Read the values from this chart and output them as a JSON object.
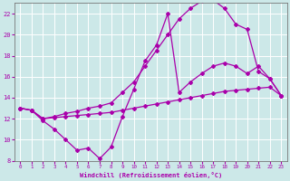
{
  "xlabel": "Windchill (Refroidissement éolien,°C)",
  "xlim": [
    -0.5,
    23.5
  ],
  "ylim": [
    8,
    23
  ],
  "yticks": [
    8,
    10,
    12,
    14,
    16,
    18,
    20,
    22
  ],
  "xticks": [
    0,
    1,
    2,
    3,
    4,
    5,
    6,
    7,
    8,
    9,
    10,
    11,
    12,
    13,
    14,
    15,
    16,
    17,
    18,
    19,
    20,
    21,
    22,
    23
  ],
  "line_color": "#aa00aa",
  "bg_color": "#cce8e8",
  "grid_color": "#ffffff",
  "curve_upper_x": [
    0,
    1,
    2,
    3,
    4,
    5,
    6,
    7,
    8,
    9,
    10,
    11,
    12,
    13,
    14,
    15,
    16,
    17,
    18,
    19,
    20,
    21,
    22,
    23
  ],
  "curve_upper_y": [
    13.0,
    12.8,
    12.0,
    12.2,
    12.5,
    12.7,
    13.0,
    13.2,
    13.5,
    14.5,
    15.5,
    17.0,
    18.5,
    20.0,
    21.5,
    22.5,
    23.2,
    23.3,
    22.5,
    21.0,
    20.5,
    16.5,
    15.8,
    14.2
  ],
  "curve_mid_x": [
    0,
    1,
    2,
    3,
    4,
    5,
    6,
    7,
    8,
    9,
    10,
    11,
    12,
    13,
    14,
    15,
    16,
    17,
    18,
    19,
    20,
    21,
    22,
    23
  ],
  "curve_mid_y": [
    13.0,
    12.8,
    11.8,
    11.0,
    10.0,
    9.0,
    9.2,
    8.2,
    9.3,
    12.2,
    14.8,
    17.5,
    19.0,
    22.0,
    14.5,
    15.5,
    16.3,
    17.0,
    17.3,
    17.0,
    16.3,
    17.0,
    15.8,
    14.2
  ],
  "curve_low_x": [
    0,
    1,
    2,
    3,
    4,
    5,
    6,
    7,
    8,
    9,
    10,
    11,
    12,
    13,
    14,
    15,
    16,
    17,
    18,
    19,
    20,
    21,
    22,
    23
  ],
  "curve_low_y": [
    13.0,
    12.8,
    12.0,
    12.1,
    12.2,
    12.3,
    12.4,
    12.5,
    12.6,
    12.8,
    13.0,
    13.2,
    13.4,
    13.6,
    13.8,
    14.0,
    14.2,
    14.4,
    14.6,
    14.7,
    14.8,
    14.9,
    15.0,
    14.2
  ]
}
